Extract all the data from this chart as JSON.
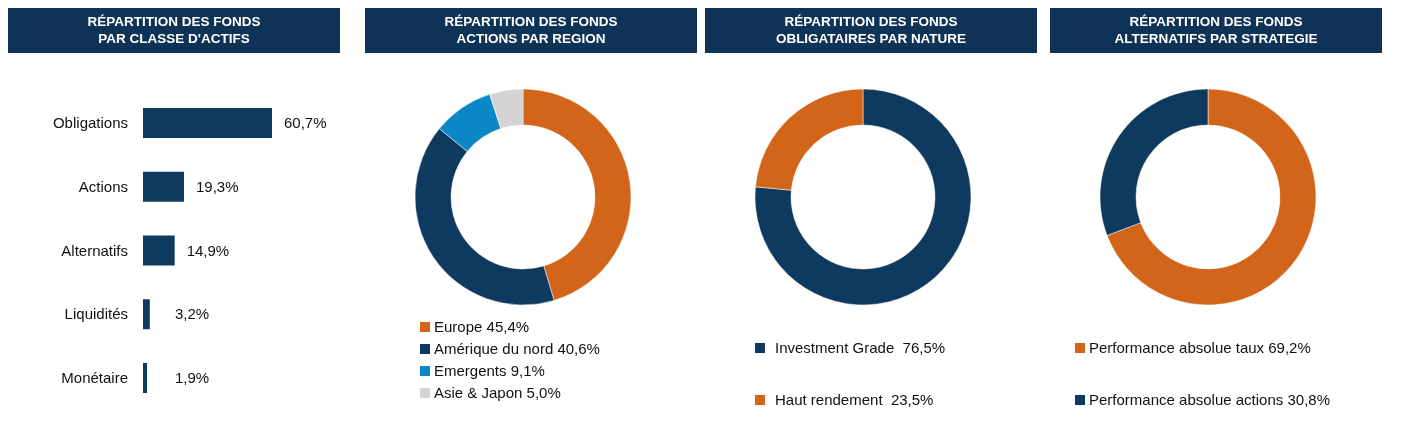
{
  "chart_data": [
    {
      "type": "bar",
      "orientation": "horizontal",
      "title": "RÉPARTITION DES FONDS\nPAR CLASSE D'ACTIFS",
      "categories": [
        "Obligations",
        "Actions",
        "Alternatifs",
        "Liquidités",
        "Monétaire"
      ],
      "values": [
        60.7,
        19.3,
        14.9,
        3.2,
        1.9
      ],
      "color": "#0f3a5f",
      "value_labels": [
        "60,7%",
        "19,3%",
        "14,9%",
        "3,2%",
        "1,9%"
      ]
    },
    {
      "type": "donut",
      "title": "RÉPARTITION DES FONDS\nACTIONS PAR REGION",
      "categories": [
        "Europe",
        "Amérique du nord",
        "Emergents",
        "Asie & Japon"
      ],
      "values": [
        45.4,
        40.6,
        9.1,
        5.0
      ],
      "colors": [
        "#d2651a",
        "#0f3a5f",
        "#0a87c4",
        "#d3d3d3"
      ],
      "value_labels": [
        "45,4%",
        "40,6%",
        "9,1%",
        "5,0%"
      ],
      "legend": "bottom"
    },
    {
      "type": "donut",
      "title": "RÉPARTITION DES FONDS\nOBLIGATAIRES PAR NATURE",
      "categories": [
        "Investment Grade",
        "Haut rendement"
      ],
      "values": [
        76.5,
        23.5
      ],
      "colors": [
        "#0f3a5f",
        "#d2651a"
      ],
      "value_labels": [
        " 76,5%",
        " 23,5%"
      ],
      "legend": "bottom"
    },
    {
      "type": "donut",
      "title": "RÉPARTITION DES FONDS\nALTERNATIFS PAR STRATEGIE",
      "categories": [
        "Performance absolue taux",
        "Performance absolue actions"
      ],
      "values": [
        69.2,
        30.8
      ],
      "colors": [
        "#d2651a",
        "#0f3a5f"
      ],
      "value_labels": [
        "69,2%",
        "30,8%"
      ],
      "legend": "bottom"
    }
  ]
}
